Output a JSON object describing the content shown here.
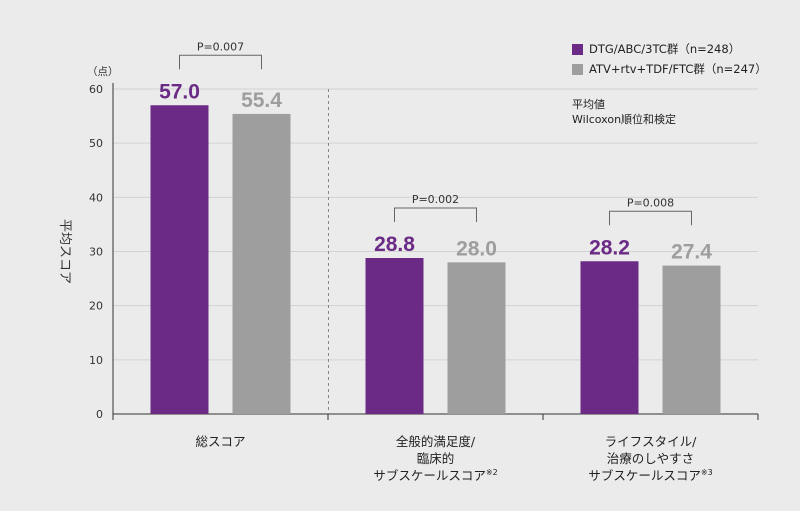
{
  "chart_data": {
    "type": "bar",
    "unit_label": "（点）",
    "ylabel": "平均スコア",
    "ylim": [
      0,
      60
    ],
    "yticks": [
      0,
      10,
      20,
      30,
      40,
      50,
      60
    ],
    "categories": [
      [
        "総スコア"
      ],
      [
        "全般的満足度/",
        "臨床的",
        "サブスケールスコア※2"
      ],
      [
        "ライフスタイル/",
        "治療のしやすさ",
        "サブスケールスコア※3"
      ]
    ],
    "series": [
      {
        "name": "DTG/ABC/3TC群（n=248）",
        "color": "#6b2a86",
        "values": [
          57.0,
          28.8,
          28.2
        ],
        "labels": [
          "57.0",
          "28.8",
          "28.2"
        ]
      },
      {
        "name": "ATV+rtv+TDF/FTC群（n=247）",
        "color": "#9e9e9e",
        "values": [
          55.4,
          28.0,
          27.4
        ],
        "labels": [
          "55.4",
          "28.0",
          "27.4"
        ]
      }
    ],
    "pvalues": [
      "P=0.007",
      "P=0.002",
      "P=0.008"
    ],
    "notes": [
      "平均値",
      "Wilcoxon順位和検定"
    ],
    "grid": true,
    "legend_position": "top-right"
  }
}
